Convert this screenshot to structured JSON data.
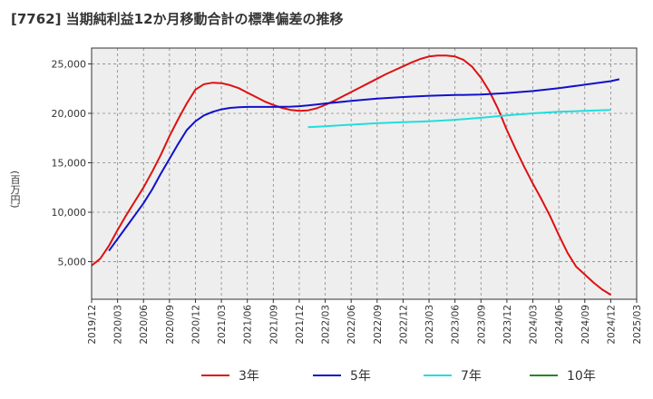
{
  "chart_data": {
    "type": "line",
    "title": "[7762]  当期純利益12か月移動合計の標準偏差の推移",
    "xlabel": "",
    "ylabel": "(百万円)",
    "x_ticks": [
      "2019/12",
      "2020/03",
      "2020/06",
      "2020/09",
      "2020/12",
      "2021/03",
      "2021/06",
      "2021/09",
      "2021/12",
      "2022/03",
      "2022/06",
      "2022/09",
      "2022/12",
      "2023/03",
      "2023/06",
      "2023/09",
      "2023/12",
      "2024/03",
      "2024/06",
      "2024/09",
      "2024/12",
      "2025/03"
    ],
    "y_ticks": [
      5000,
      10000,
      15000,
      20000,
      25000
    ],
    "y_tick_labels": [
      "5,000",
      "10,000",
      "15,000",
      "20,000",
      "25,000"
    ],
    "ylim": [
      1200,
      26600
    ],
    "grid": true,
    "legend_position": "bottom",
    "series": [
      {
        "name": "3年",
        "color": "#dd1111",
        "points": [
          [
            "2019/12",
            4600
          ],
          [
            "2020/01",
            5300
          ],
          [
            "2020/02",
            6600
          ],
          [
            "2020/03",
            8200
          ],
          [
            "2020/04",
            9700
          ],
          [
            "2020/05",
            11100
          ],
          [
            "2020/06",
            12500
          ],
          [
            "2020/07",
            14100
          ],
          [
            "2020/08",
            15800
          ],
          [
            "2020/09",
            17700
          ],
          [
            "2020/10",
            19400
          ],
          [
            "2020/11",
            21000
          ],
          [
            "2020/12",
            22400
          ],
          [
            "2021/01",
            22950
          ],
          [
            "2021/02",
            23100
          ],
          [
            "2021/03",
            23050
          ],
          [
            "2021/04",
            22850
          ],
          [
            "2021/05",
            22550
          ],
          [
            "2021/06",
            22100
          ],
          [
            "2021/07",
            21650
          ],
          [
            "2021/08",
            21200
          ],
          [
            "2021/09",
            20850
          ],
          [
            "2021/10",
            20550
          ],
          [
            "2021/11",
            20350
          ],
          [
            "2021/12",
            20250
          ],
          [
            "2022/01",
            20300
          ],
          [
            "2022/02",
            20500
          ],
          [
            "2022/03",
            20850
          ],
          [
            "2022/04",
            21250
          ],
          [
            "2022/05",
            21700
          ],
          [
            "2022/06",
            22150
          ],
          [
            "2022/07",
            22600
          ],
          [
            "2022/08",
            23050
          ],
          [
            "2022/09",
            23500
          ],
          [
            "2022/10",
            23950
          ],
          [
            "2022/11",
            24350
          ],
          [
            "2022/12",
            24750
          ],
          [
            "2023/01",
            25150
          ],
          [
            "2023/02",
            25500
          ],
          [
            "2023/03",
            25750
          ],
          [
            "2023/04",
            25850
          ],
          [
            "2023/05",
            25850
          ],
          [
            "2023/06",
            25750
          ],
          [
            "2023/07",
            25400
          ],
          [
            "2023/08",
            24700
          ],
          [
            "2023/09",
            23600
          ],
          [
            "2023/10",
            22200
          ],
          [
            "2023/11",
            20400
          ],
          [
            "2023/12",
            18300
          ],
          [
            "2024/01",
            16400
          ],
          [
            "2024/02",
            14600
          ],
          [
            "2024/03",
            12900
          ],
          [
            "2024/04",
            11300
          ],
          [
            "2024/05",
            9600
          ],
          [
            "2024/06",
            7700
          ],
          [
            "2024/07",
            5900
          ],
          [
            "2024/08",
            4500
          ],
          [
            "2024/09",
            3700
          ],
          [
            "2024/10",
            2900
          ],
          [
            "2024/11",
            2200
          ],
          [
            "2024/12",
            1650
          ]
        ]
      },
      {
        "name": "5年",
        "color": "#1111cc",
        "points": [
          [
            "2020/02",
            6100
          ],
          [
            "2020/03",
            7300
          ],
          [
            "2020/04",
            8500
          ],
          [
            "2020/05",
            9700
          ],
          [
            "2020/06",
            10900
          ],
          [
            "2020/07",
            12300
          ],
          [
            "2020/08",
            13900
          ],
          [
            "2020/09",
            15400
          ],
          [
            "2020/10",
            16900
          ],
          [
            "2020/11",
            18300
          ],
          [
            "2020/12",
            19200
          ],
          [
            "2021/01",
            19800
          ],
          [
            "2021/02",
            20150
          ],
          [
            "2021/03",
            20400
          ],
          [
            "2021/04",
            20550
          ],
          [
            "2021/05",
            20620
          ],
          [
            "2021/06",
            20650
          ],
          [
            "2021/07",
            20650
          ],
          [
            "2021/08",
            20650
          ],
          [
            "2021/09",
            20650
          ],
          [
            "2021/10",
            20660
          ],
          [
            "2021/11",
            20680
          ],
          [
            "2021/12",
            20720
          ],
          [
            "2022/01",
            20800
          ],
          [
            "2022/02",
            20900
          ],
          [
            "2022/03",
            21000
          ],
          [
            "2022/06",
            21250
          ],
          [
            "2022/09",
            21480
          ],
          [
            "2022/12",
            21650
          ],
          [
            "2023/03",
            21780
          ],
          [
            "2023/06",
            21850
          ],
          [
            "2023/09",
            21900
          ],
          [
            "2023/12",
            22050
          ],
          [
            "2024/03",
            22250
          ],
          [
            "2024/06",
            22550
          ],
          [
            "2024/09",
            22900
          ],
          [
            "2024/12",
            23250
          ],
          [
            "2025/01",
            23450
          ]
        ]
      },
      {
        "name": "7年",
        "color": "#22dddd",
        "points": [
          [
            "2022/01",
            18600
          ],
          [
            "2022/03",
            18700
          ],
          [
            "2022/06",
            18850
          ],
          [
            "2022/09",
            19000
          ],
          [
            "2022/12",
            19100
          ],
          [
            "2023/03",
            19200
          ],
          [
            "2023/06",
            19350
          ],
          [
            "2023/09",
            19550
          ],
          [
            "2023/12",
            19800
          ],
          [
            "2024/03",
            20000
          ],
          [
            "2024/06",
            20150
          ],
          [
            "2024/09",
            20250
          ],
          [
            "2024/12",
            20350
          ]
        ]
      },
      {
        "name": "10年",
        "color": "#228822",
        "points": []
      }
    ]
  }
}
